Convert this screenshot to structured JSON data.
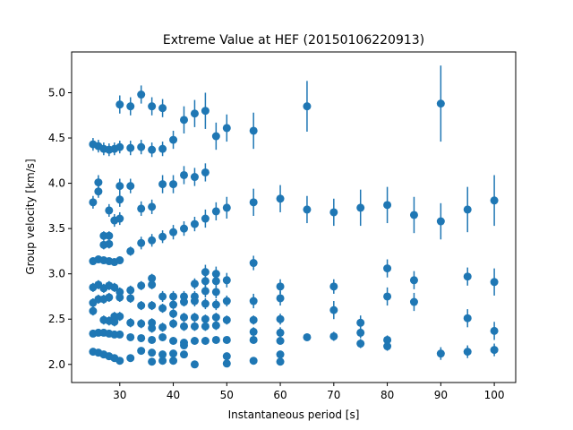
{
  "chart_data": {
    "type": "scatter",
    "title": "Extreme Value at HEF (20150106220913)",
    "xlabel": "Instantaneous period [s]",
    "ylabel": "Group velocity [km/s]",
    "xlim": [
      21,
      104
    ],
    "ylim": [
      1.8,
      5.45
    ],
    "xticks": [
      30,
      40,
      50,
      60,
      70,
      80,
      90,
      100
    ],
    "yticks": [
      2.0,
      2.5,
      3.0,
      3.5,
      4.0,
      4.5,
      5.0
    ],
    "grid": false,
    "marker_color": "#1f77b4",
    "points": [
      [
        25,
        4.43,
        0.07
      ],
      [
        26,
        4.41,
        0.07
      ],
      [
        27,
        4.38,
        0.07
      ],
      [
        28,
        4.37,
        0.07
      ],
      [
        29,
        4.38,
        0.07
      ],
      [
        30,
        4.4,
        0.07
      ],
      [
        30,
        4.87,
        0.1
      ],
      [
        32,
        4.85,
        0.1
      ],
      [
        32,
        4.39,
        0.08
      ],
      [
        34,
        4.98,
        0.1
      ],
      [
        34,
        4.4,
        0.08
      ],
      [
        36,
        4.85,
        0.1
      ],
      [
        36,
        4.37,
        0.08
      ],
      [
        38,
        4.83,
        0.1
      ],
      [
        38,
        4.38,
        0.08
      ],
      [
        40,
        4.48,
        0.1
      ],
      [
        42,
        4.7,
        0.15
      ],
      [
        44,
        4.77,
        0.15
      ],
      [
        46,
        4.8,
        0.2
      ],
      [
        48,
        4.52,
        0.15
      ],
      [
        50,
        4.61,
        0.15
      ],
      [
        55,
        4.58,
        0.2
      ],
      [
        65,
        4.85,
        0.28
      ],
      [
        90,
        4.88,
        0.42
      ],
      [
        25,
        3.79,
        0.07
      ],
      [
        26,
        3.91,
        0.07
      ],
      [
        26,
        4.01,
        0.08
      ],
      [
        28,
        3.7,
        0.07
      ],
      [
        29,
        3.59,
        0.07
      ],
      [
        30,
        3.97,
        0.08
      ],
      [
        30,
        3.82,
        0.08
      ],
      [
        30,
        3.61,
        0.07
      ],
      [
        32,
        3.97,
        0.08
      ],
      [
        34,
        3.72,
        0.08
      ],
      [
        36,
        3.74,
        0.08
      ],
      [
        38,
        3.99,
        0.1
      ],
      [
        40,
        3.99,
        0.1
      ],
      [
        42,
        4.09,
        0.1
      ],
      [
        44,
        4.07,
        0.1
      ],
      [
        46,
        4.12,
        0.1
      ],
      [
        55,
        3.79,
        0.15
      ],
      [
        60,
        3.83,
        0.15
      ],
      [
        65,
        3.71,
        0.15
      ],
      [
        70,
        3.68,
        0.15
      ],
      [
        75,
        3.73,
        0.2
      ],
      [
        80,
        3.76,
        0.2
      ],
      [
        85,
        3.65,
        0.2
      ],
      [
        90,
        3.58,
        0.2
      ],
      [
        95,
        3.71,
        0.25
      ],
      [
        100,
        3.81,
        0.28
      ],
      [
        27,
        3.42,
        0.05
      ],
      [
        28,
        3.42,
        0.05
      ],
      [
        27,
        3.32,
        0.05
      ],
      [
        28,
        3.33,
        0.05
      ],
      [
        32,
        3.25,
        0.05
      ],
      [
        34,
        3.34,
        0.07
      ],
      [
        36,
        3.37,
        0.07
      ],
      [
        38,
        3.41,
        0.07
      ],
      [
        40,
        3.46,
        0.08
      ],
      [
        42,
        3.5,
        0.08
      ],
      [
        44,
        3.55,
        0.08
      ],
      [
        46,
        3.61,
        0.1
      ],
      [
        48,
        3.69,
        0.1
      ],
      [
        50,
        3.73,
        0.12
      ],
      [
        25,
        3.14,
        0.04
      ],
      [
        26,
        3.16,
        0.04
      ],
      [
        27,
        3.15,
        0.04
      ],
      [
        28,
        3.14,
        0.04
      ],
      [
        29,
        3.13,
        0.04
      ],
      [
        30,
        3.15,
        0.04
      ],
      [
        55,
        3.12,
        0.08
      ],
      [
        80,
        3.06,
        0.1
      ],
      [
        85,
        2.93,
        0.1
      ],
      [
        95,
        2.97,
        0.1
      ],
      [
        100,
        2.91,
        0.15
      ],
      [
        25,
        2.85,
        0.05
      ],
      [
        26,
        2.88,
        0.05
      ],
      [
        27,
        2.84,
        0.05
      ],
      [
        28,
        2.87,
        0.05
      ],
      [
        29,
        2.85,
        0.05
      ],
      [
        30,
        2.8,
        0.05
      ],
      [
        32,
        2.82,
        0.05
      ],
      [
        34,
        2.87,
        0.05
      ],
      [
        36,
        2.95,
        0.05
      ],
      [
        36,
        2.88,
        0.05
      ],
      [
        38,
        2.75,
        0.06
      ],
      [
        40,
        2.75,
        0.06
      ],
      [
        42,
        2.75,
        0.06
      ],
      [
        44,
        2.89,
        0.06
      ],
      [
        44,
        2.75,
        0.06
      ],
      [
        46,
        3.02,
        0.08
      ],
      [
        46,
        2.92,
        0.07
      ],
      [
        46,
        2.81,
        0.07
      ],
      [
        48,
        3.0,
        0.08
      ],
      [
        48,
        2.92,
        0.07
      ],
      [
        48,
        2.8,
        0.07
      ],
      [
        50,
        2.93,
        0.08
      ],
      [
        60,
        2.86,
        0.08
      ],
      [
        70,
        2.86,
        0.08
      ],
      [
        80,
        2.75,
        0.1
      ],
      [
        85,
        2.69,
        0.1
      ],
      [
        25,
        2.68,
        0.05
      ],
      [
        26,
        2.72,
        0.05
      ],
      [
        27,
        2.72,
        0.05
      ],
      [
        28,
        2.74,
        0.05
      ],
      [
        30,
        2.74,
        0.05
      ],
      [
        32,
        2.73,
        0.05
      ],
      [
        34,
        2.65,
        0.05
      ],
      [
        36,
        2.65,
        0.05
      ],
      [
        38,
        2.62,
        0.05
      ],
      [
        40,
        2.66,
        0.05
      ],
      [
        42,
        2.69,
        0.05
      ],
      [
        44,
        2.7,
        0.06
      ],
      [
        46,
        2.67,
        0.06
      ],
      [
        48,
        2.66,
        0.06
      ],
      [
        50,
        2.7,
        0.06
      ],
      [
        55,
        2.7,
        0.08
      ],
      [
        60,
        2.73,
        0.08
      ],
      [
        70,
        2.6,
        0.1
      ],
      [
        25,
        2.59,
        0.05
      ],
      [
        27,
        2.49,
        0.05
      ],
      [
        28,
        2.48,
        0.05
      ],
      [
        29,
        2.47,
        0.05
      ],
      [
        29,
        2.53,
        0.05
      ],
      [
        30,
        2.53,
        0.05
      ],
      [
        32,
        2.46,
        0.05
      ],
      [
        34,
        2.45,
        0.05
      ],
      [
        36,
        2.4,
        0.05
      ],
      [
        36,
        2.46,
        0.05
      ],
      [
        38,
        2.41,
        0.05
      ],
      [
        40,
        2.45,
        0.05
      ],
      [
        40,
        2.56,
        0.05
      ],
      [
        42,
        2.52,
        0.05
      ],
      [
        42,
        2.42,
        0.05
      ],
      [
        44,
        2.52,
        0.05
      ],
      [
        44,
        2.42,
        0.05
      ],
      [
        46,
        2.5,
        0.05
      ],
      [
        46,
        2.42,
        0.05
      ],
      [
        48,
        2.52,
        0.05
      ],
      [
        48,
        2.43,
        0.05
      ],
      [
        50,
        2.49,
        0.05
      ],
      [
        55,
        2.49,
        0.05
      ],
      [
        55,
        2.36,
        0.05
      ],
      [
        60,
        2.5,
        0.06
      ],
      [
        60,
        2.35,
        0.06
      ],
      [
        75,
        2.46,
        0.08
      ],
      [
        75,
        2.35,
        0.06
      ],
      [
        95,
        2.51,
        0.1
      ],
      [
        100,
        2.37,
        0.1
      ],
      [
        25,
        2.34,
        0.04
      ],
      [
        26,
        2.35,
        0.04
      ],
      [
        27,
        2.35,
        0.04
      ],
      [
        28,
        2.34,
        0.04
      ],
      [
        29,
        2.33,
        0.04
      ],
      [
        30,
        2.33,
        0.04
      ],
      [
        32,
        2.3,
        0.04
      ],
      [
        34,
        2.29,
        0.04
      ],
      [
        36,
        2.27,
        0.04
      ],
      [
        38,
        2.3,
        0.04
      ],
      [
        40,
        2.26,
        0.04
      ],
      [
        42,
        2.24,
        0.04
      ],
      [
        44,
        2.26,
        0.04
      ],
      [
        46,
        2.26,
        0.04
      ],
      [
        48,
        2.27,
        0.04
      ],
      [
        50,
        2.27,
        0.04
      ],
      [
        55,
        2.27,
        0.04
      ],
      [
        60,
        2.26,
        0.04
      ],
      [
        65,
        2.3,
        0.04
      ],
      [
        70,
        2.31,
        0.05
      ],
      [
        75,
        2.23,
        0.05
      ],
      [
        80,
        2.27,
        0.05
      ],
      [
        80,
        2.2,
        0.05
      ],
      [
        25,
        2.14,
        0.04
      ],
      [
        26,
        2.13,
        0.04
      ],
      [
        27,
        2.11,
        0.04
      ],
      [
        28,
        2.09,
        0.04
      ],
      [
        29,
        2.07,
        0.04
      ],
      [
        30,
        2.04,
        0.04
      ],
      [
        32,
        2.07,
        0.04
      ],
      [
        34,
        2.15,
        0.04
      ],
      [
        36,
        2.13,
        0.04
      ],
      [
        36,
        2.03,
        0.04
      ],
      [
        38,
        2.11,
        0.04
      ],
      [
        38,
        2.04,
        0.04
      ],
      [
        40,
        2.12,
        0.04
      ],
      [
        40,
        2.04,
        0.04
      ],
      [
        42,
        2.21,
        0.04
      ],
      [
        42,
        2.11,
        0.04
      ],
      [
        44,
        2.0,
        0.04
      ],
      [
        50,
        2.09,
        0.04
      ],
      [
        50,
        2.01,
        0.04
      ],
      [
        55,
        2.04,
        0.04
      ],
      [
        60,
        2.11,
        0.04
      ],
      [
        60,
        2.03,
        0.04
      ],
      [
        90,
        2.12,
        0.07
      ],
      [
        95,
        2.14,
        0.07
      ],
      [
        100,
        2.16,
        0.07
      ]
    ]
  }
}
